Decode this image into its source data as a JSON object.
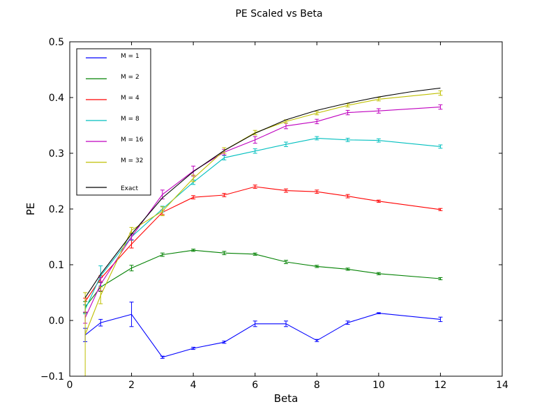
{
  "chart_data": {
    "type": "line",
    "title": "PE Scaled vs Beta",
    "xlabel": "Beta",
    "ylabel": "PE",
    "xlim": [
      0,
      14
    ],
    "ylim": [
      -0.1,
      0.5
    ],
    "xticks": [
      "0",
      "2",
      "4",
      "6",
      "8",
      "10",
      "12",
      "14"
    ],
    "yticks": [
      "−0.1",
      "0.0",
      "0.1",
      "0.2",
      "0.3",
      "0.4",
      "0.5"
    ],
    "grid": false,
    "legend_position": "top-left",
    "error_bars": true,
    "series": [
      {
        "name": "M = 1",
        "color": "#0000ff",
        "x": [
          0.5,
          1,
          2,
          3,
          4,
          5,
          6,
          7,
          8,
          9,
          10,
          12
        ],
        "y": [
          -0.026,
          -0.004,
          0.011,
          -0.066,
          -0.05,
          -0.039,
          -0.006,
          -0.006,
          -0.036,
          -0.004,
          0.013,
          0.002
        ],
        "err": [
          0.012,
          0.006,
          0.022,
          0.002,
          0.002,
          0.002,
          0.005,
          0.005,
          0.002,
          0.003,
          0.001,
          0.004
        ]
      },
      {
        "name": "M = 2",
        "color": "#008000",
        "x": [
          0.5,
          1,
          2,
          3,
          4,
          5,
          6,
          7,
          8,
          9,
          10,
          12
        ],
        "y": [
          0.024,
          0.06,
          0.094,
          0.118,
          0.126,
          0.121,
          0.119,
          0.105,
          0.097,
          0.092,
          0.084,
          0.075
        ],
        "err": [
          0.01,
          0.008,
          0.005,
          0.003,
          0.002,
          0.003,
          0.002,
          0.003,
          0.002,
          0.002,
          0.002,
          0.002
        ]
      },
      {
        "name": "M = 4",
        "color": "#ff0000",
        "x": [
          0.5,
          1,
          2,
          3,
          4,
          5,
          6,
          7,
          8,
          9,
          10,
          12
        ],
        "y": [
          0.034,
          0.075,
          0.137,
          0.194,
          0.221,
          0.225,
          0.24,
          0.233,
          0.231,
          0.223,
          0.214,
          0.199
        ],
        "err": [
          0.006,
          0.005,
          0.007,
          0.004,
          0.003,
          0.003,
          0.003,
          0.003,
          0.003,
          0.003,
          0.002,
          0.002
        ]
      },
      {
        "name": "M = 8",
        "color": "#00bfbf",
        "x": [
          0.5,
          1,
          2,
          3,
          4,
          5,
          6,
          7,
          8,
          9,
          10,
          12
        ],
        "y": [
          0.02,
          0.08,
          0.15,
          0.2,
          0.248,
          0.292,
          0.304,
          0.316,
          0.327,
          0.324,
          0.323,
          0.312
        ],
        "err": [
          0.008,
          0.018,
          0.006,
          0.005,
          0.004,
          0.004,
          0.004,
          0.004,
          0.003,
          0.003,
          0.003,
          0.003
        ]
      },
      {
        "name": "M = 16",
        "color": "#bf00bf",
        "x": [
          0.5,
          1,
          2,
          3,
          4,
          5,
          6,
          7,
          8,
          9,
          10,
          12
        ],
        "y": [
          0.005,
          0.065,
          0.15,
          0.226,
          0.268,
          0.302,
          0.324,
          0.349,
          0.357,
          0.373,
          0.376,
          0.383
        ],
        "err": [
          0.01,
          0.012,
          0.005,
          0.008,
          0.009,
          0.005,
          0.006,
          0.005,
          0.004,
          0.004,
          0.004,
          0.004
        ]
      },
      {
        "name": "M = 32",
        "color": "#bfbf00",
        "x": [
          0.5,
          1,
          2,
          3,
          4,
          5,
          6,
          7,
          8,
          9,
          10,
          12
        ],
        "y": [
          -0.025,
          0.045,
          0.162,
          0.196,
          0.255,
          0.305,
          0.337,
          0.357,
          0.372,
          0.386,
          0.397,
          0.408
        ],
        "err": [
          0.075,
          0.015,
          0.005,
          0.008,
          0.006,
          0.005,
          0.004,
          0.003,
          0.003,
          0.003,
          0.003,
          0.004
        ]
      },
      {
        "name": "Exact",
        "color": "#000000",
        "x": [
          0.5,
          1,
          2,
          3,
          4,
          5,
          6,
          7,
          8,
          9,
          10,
          11,
          12
        ],
        "y": [
          0.041,
          0.083,
          0.155,
          0.22,
          0.267,
          0.305,
          0.336,
          0.36,
          0.377,
          0.39,
          0.401,
          0.41,
          0.417
        ]
      }
    ]
  }
}
